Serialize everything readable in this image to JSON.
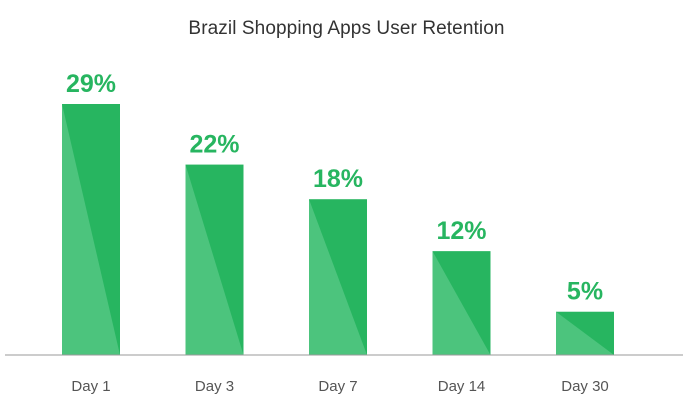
{
  "chart_data": {
    "type": "bar",
    "title": "Brazil Shopping Apps User Retention",
    "categories": [
      "Day 1",
      "Day 3",
      "Day 7",
      "Day 14",
      "Day 30"
    ],
    "values": [
      29,
      22,
      18,
      12,
      5
    ],
    "value_labels": [
      "29%",
      "22%",
      "18%",
      "12%",
      "5%"
    ],
    "ylim": [
      0,
      29
    ],
    "grid": false,
    "legend": "none",
    "colors": {
      "bar": "#27b560",
      "bar_shade": "#4cc47d",
      "label": "#27b560",
      "axis": "#9a9a9a"
    }
  }
}
